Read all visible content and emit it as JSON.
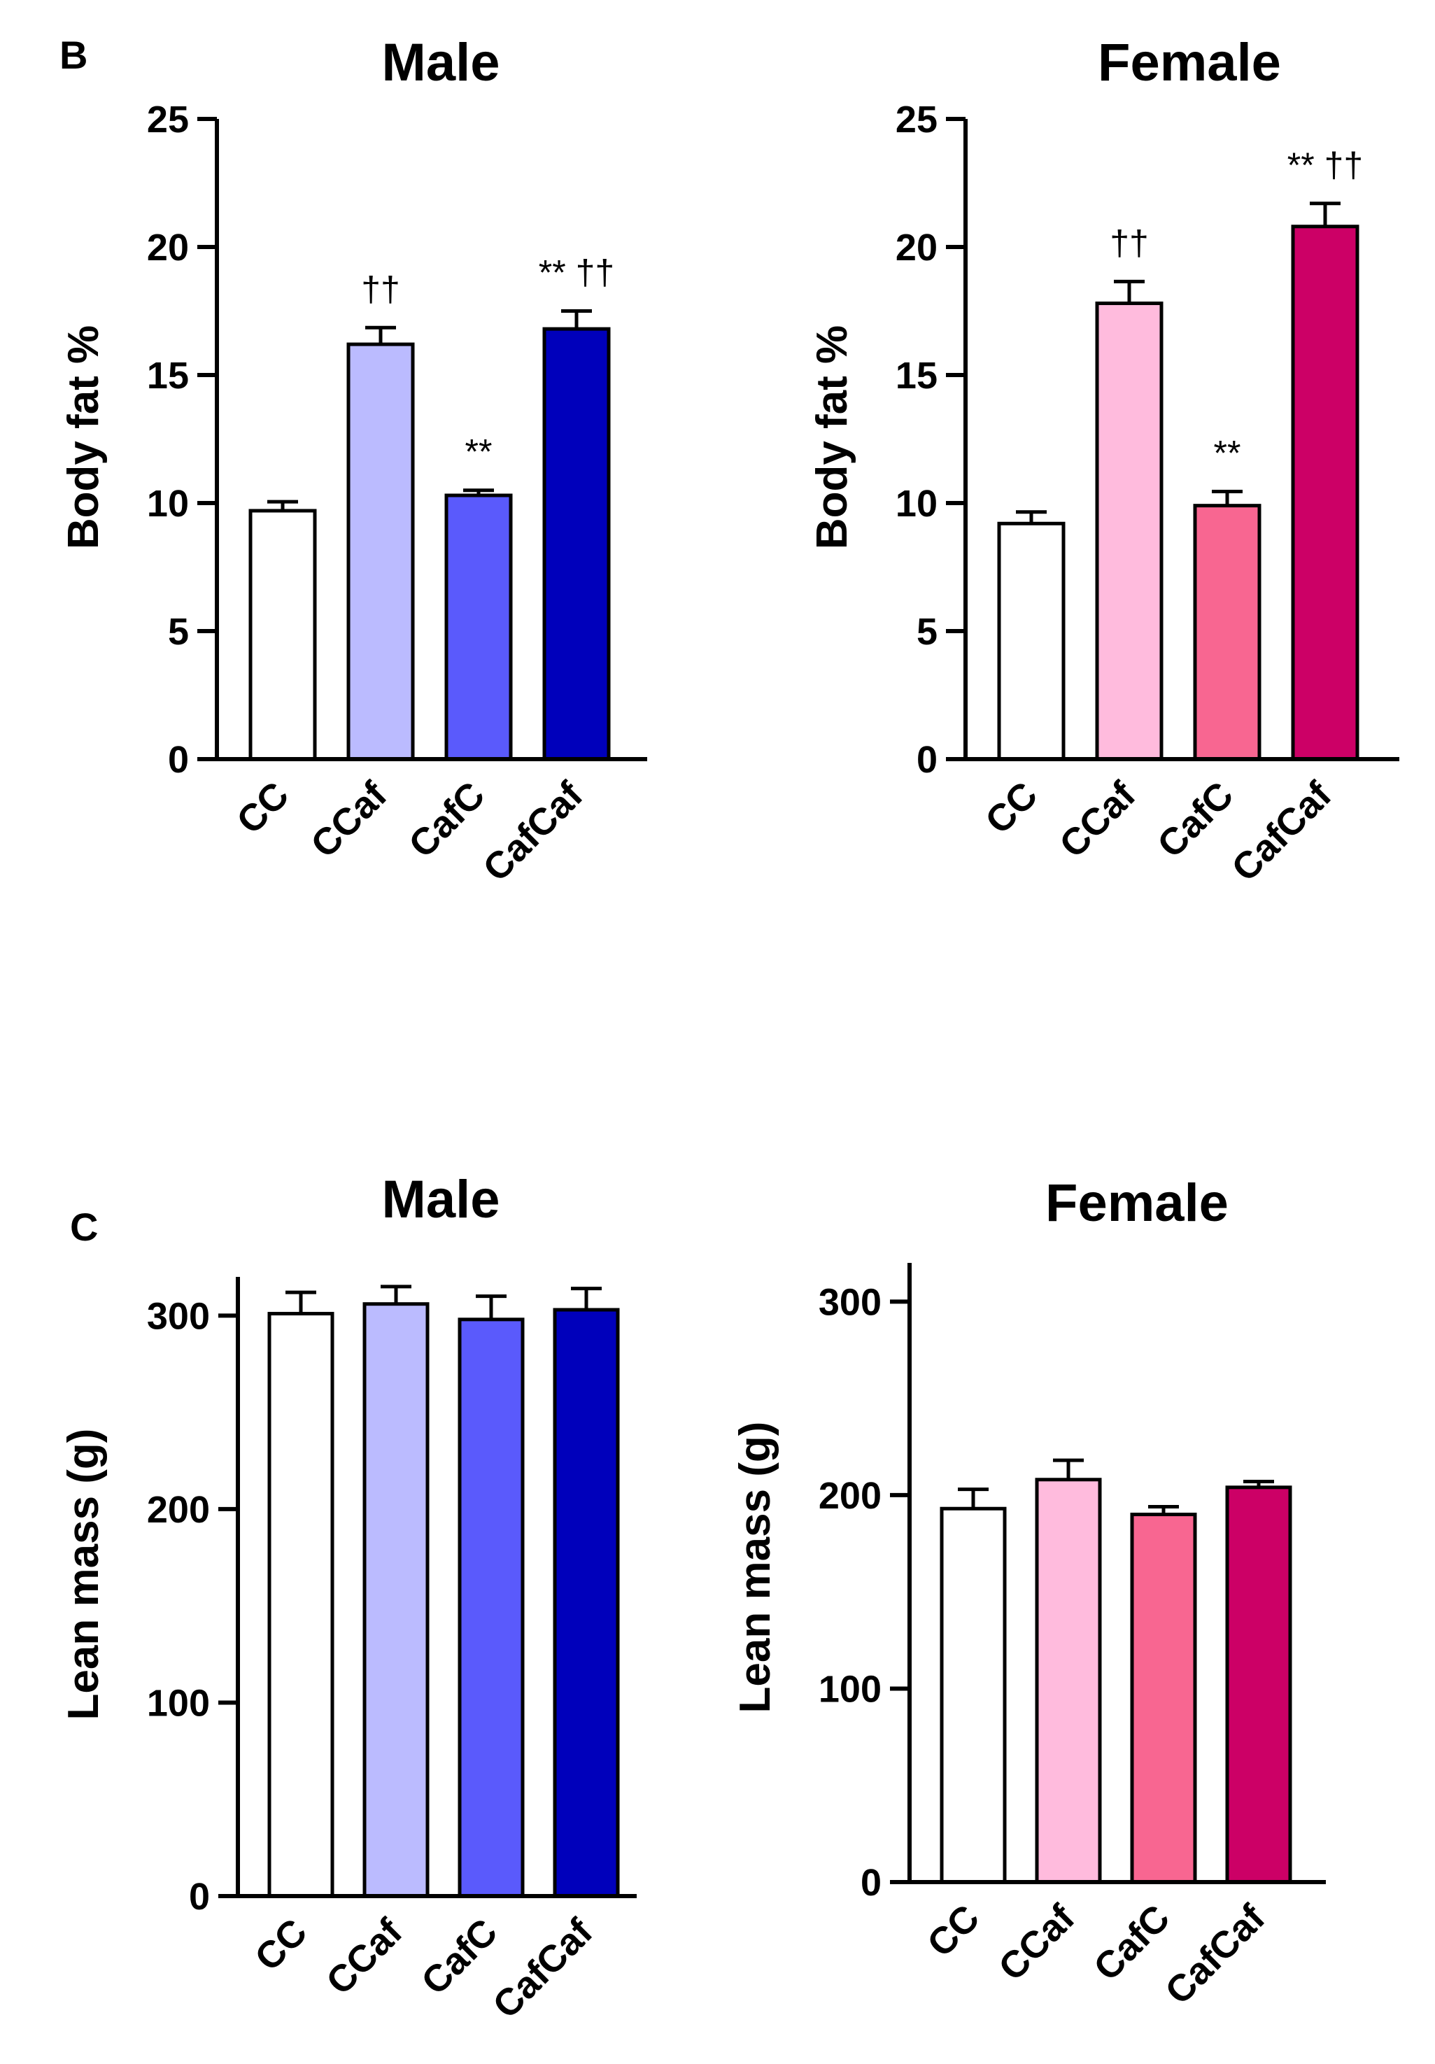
{
  "chart_data": [
    {
      "panel": "B",
      "title": "Male",
      "type": "bar",
      "ylabel": "Body fat %",
      "xlabel": "",
      "ylim": [
        0,
        25
      ],
      "yticks": [
        0,
        5,
        10,
        15,
        20,
        25
      ],
      "categories": [
        "CC",
        "CCaf",
        "CafC",
        "CafCaf"
      ],
      "values": [
        9.7,
        16.2,
        10.3,
        16.8
      ],
      "errors": [
        0.35,
        0.65,
        0.2,
        0.7
      ],
      "colors": [
        "#ffffff",
        "#bbbbff",
        "#5a5afc",
        "#0000bb"
      ],
      "annotations": [
        "",
        "††",
        "**",
        "** ††"
      ],
      "grid": false
    },
    {
      "panel": "",
      "title": "Female",
      "type": "bar",
      "ylabel": "Body fat %",
      "xlabel": "",
      "ylim": [
        0,
        25
      ],
      "yticks": [
        0,
        5,
        10,
        15,
        20,
        25
      ],
      "categories": [
        "CC",
        "CCaf",
        "CafC",
        "CafCaf"
      ],
      "values": [
        9.2,
        17.8,
        9.9,
        20.8
      ],
      "errors": [
        0.45,
        0.85,
        0.55,
        0.9
      ],
      "colors": [
        "#ffffff",
        "#ffbbdd",
        "#f86691",
        "#cc0066"
      ],
      "annotations": [
        "",
        "††",
        "**",
        "** ††"
      ],
      "grid": false
    },
    {
      "panel": "C",
      "title": "Male",
      "type": "bar",
      "ylabel": "Lean mass (g)",
      "xlabel": "",
      "ylim": [
        0,
        320
      ],
      "yticks": [
        0,
        100,
        200,
        300
      ],
      "categories": [
        "CC",
        "CCaf",
        "CafC",
        "CafCaf"
      ],
      "values": [
        301,
        306,
        298,
        303
      ],
      "errors": [
        11,
        9,
        12,
        11
      ],
      "colors": [
        "#ffffff",
        "#bbbbff",
        "#5a5afc",
        "#0000bb"
      ],
      "annotations": [
        "",
        "",
        "",
        ""
      ],
      "grid": false
    },
    {
      "panel": "",
      "title": "Female",
      "type": "bar",
      "ylabel": "Lean mass (g)",
      "xlabel": "",
      "ylim": [
        0,
        320
      ],
      "yticks": [
        0,
        100,
        200,
        300
      ],
      "categories": [
        "CC",
        "CCaf",
        "CafC",
        "CafCaf"
      ],
      "values": [
        193,
        208,
        190,
        204
      ],
      "errors": [
        10,
        10,
        4,
        3
      ],
      "colors": [
        "#ffffff",
        "#ffbbdd",
        "#f86691",
        "#cc0066"
      ],
      "annotations": [
        "",
        "",
        "",
        ""
      ],
      "grid": false
    }
  ]
}
